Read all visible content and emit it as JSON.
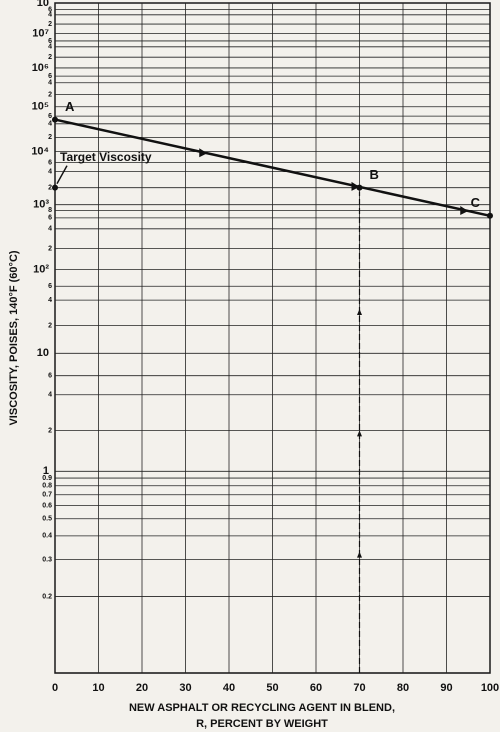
{
  "chart_data": {
    "type": "line",
    "yscale": "loglog",
    "grid": true,
    "ylabel": "VISCOSITY, POISES, 140°F (60°C)",
    "xlabel": [
      "NEW ASPHALT OR RECYCLING AGENT IN BLEND,",
      "R, PERCENT BY WEIGHT"
    ],
    "xlim": [
      0,
      100
    ],
    "xticks": [
      0,
      10,
      20,
      30,
      40,
      50,
      60,
      70,
      80,
      90,
      100
    ],
    "ylim": [
      0.1,
      100000000
    ],
    "yticks": [
      {
        "value": 100000000,
        "label": "10"
      },
      {
        "value": 60000000,
        "label": "6"
      },
      {
        "value": 40000000,
        "label": "4"
      },
      {
        "value": 20000000,
        "label": "2"
      },
      {
        "value": 10000000,
        "label": "10⁷"
      },
      {
        "value": 6000000,
        "label": "6"
      },
      {
        "value": 4000000,
        "label": "4"
      },
      {
        "value": 2000000,
        "label": "2"
      },
      {
        "value": 1000000,
        "label": "10⁶"
      },
      {
        "value": 600000,
        "label": "6"
      },
      {
        "value": 400000,
        "label": "4"
      },
      {
        "value": 200000,
        "label": "2"
      },
      {
        "value": 100000,
        "label": "10⁵"
      },
      {
        "value": 60000,
        "label": "6"
      },
      {
        "value": 40000,
        "label": "4"
      },
      {
        "value": 20000,
        "label": "2"
      },
      {
        "value": 10000,
        "label": "10⁴"
      },
      {
        "value": 6000,
        "label": "6"
      },
      {
        "value": 4000,
        "label": "4"
      },
      {
        "value": 2000,
        "label": "2"
      },
      {
        "value": 1000,
        "label": "10³"
      },
      {
        "value": 800,
        "label": "8"
      },
      {
        "value": 600,
        "label": "6"
      },
      {
        "value": 400,
        "label": "4"
      },
      {
        "value": 200,
        "label": "2"
      },
      {
        "value": 100,
        "label": "10²"
      },
      {
        "value": 60,
        "label": "6"
      },
      {
        "value": 40,
        "label": "4"
      },
      {
        "value": 20,
        "label": "2"
      },
      10,
      6,
      4,
      2,
      1,
      0.9,
      0.8,
      0.7,
      0.6,
      0.5,
      0.4,
      0.3,
      0.2
    ],
    "series": [
      {
        "x": [
          0,
          100
        ],
        "values": [
          50000,
          650
        ],
        "color": "#111111"
      }
    ],
    "points": [
      {
        "label": "A",
        "x": 0,
        "value": 50000
      },
      {
        "label": "B",
        "x": 70,
        "value": 2000
      },
      {
        "label": "C",
        "x": 100,
        "value": 650
      },
      {
        "label": "Target Viscosity",
        "x": 0,
        "value": 2000
      }
    ]
  }
}
